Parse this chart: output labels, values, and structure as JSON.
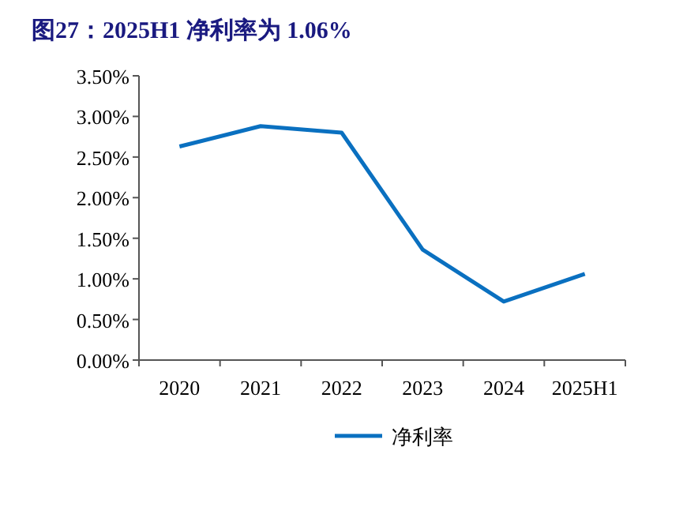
{
  "chart_data": {
    "type": "line",
    "title": "图27：2025H1 净利率为 1.06%",
    "categories": [
      "2020",
      "2021",
      "2022",
      "2023",
      "2024",
      "2025H1"
    ],
    "series": [
      {
        "name": "净利率",
        "color": "#0a70c0",
        "values": [
          2.63,
          2.88,
          2.8,
          1.36,
          0.72,
          1.06
        ]
      }
    ],
    "ylim": [
      0,
      3.5
    ],
    "yticks": [
      {
        "value": 0,
        "label": "0.00%"
      },
      {
        "value": 0.5,
        "label": "0.50%"
      },
      {
        "value": 1,
        "label": "1.00%"
      },
      {
        "value": 1.5,
        "label": "1.50%"
      },
      {
        "value": 2,
        "label": "2.00%"
      },
      {
        "value": 2.5,
        "label": "2.50%"
      },
      {
        "value": 3,
        "label": "3.00%"
      },
      {
        "value": 3.5,
        "label": "3.50%"
      }
    ],
    "grid": false,
    "legend": "bottom",
    "marker": "none",
    "line_style": "solid"
  }
}
